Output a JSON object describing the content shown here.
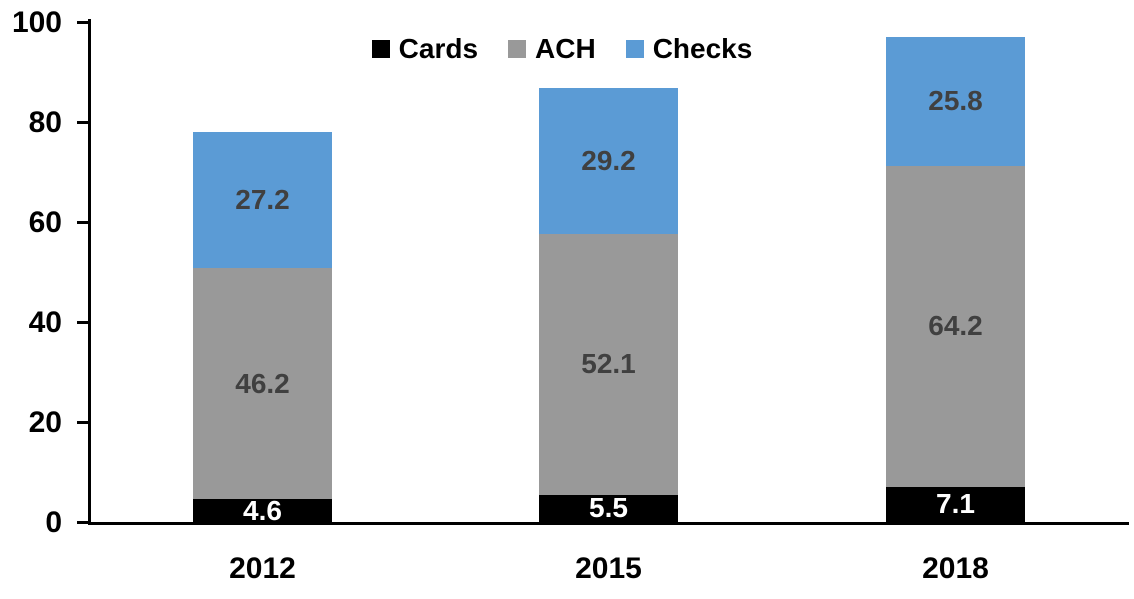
{
  "chart_data": {
    "type": "bar",
    "stacked": true,
    "title": "",
    "xlabel": "",
    "ylabel": "",
    "categories": [
      "2012",
      "2015",
      "2018"
    ],
    "series": [
      {
        "name": "Cards",
        "color": "#000000",
        "label_color": "#ffffff",
        "values": [
          4.6,
          5.5,
          7.1
        ]
      },
      {
        "name": "ACH",
        "color": "#999999",
        "label_color": "#404040",
        "values": [
          46.2,
          52.1,
          64.2
        ]
      },
      {
        "name": "Checks",
        "color": "#5B9BD5",
        "label_color": "#404040",
        "values": [
          27.2,
          29.2,
          25.8
        ]
      }
    ],
    "ylim": [
      0,
      100
    ],
    "ytick_labels": [
      "0",
      "20",
      "40",
      "60",
      "80",
      "100"
    ],
    "grid": false,
    "legend_position": "top-center",
    "background_color": "#ffffff",
    "axis_color": "#000000"
  }
}
